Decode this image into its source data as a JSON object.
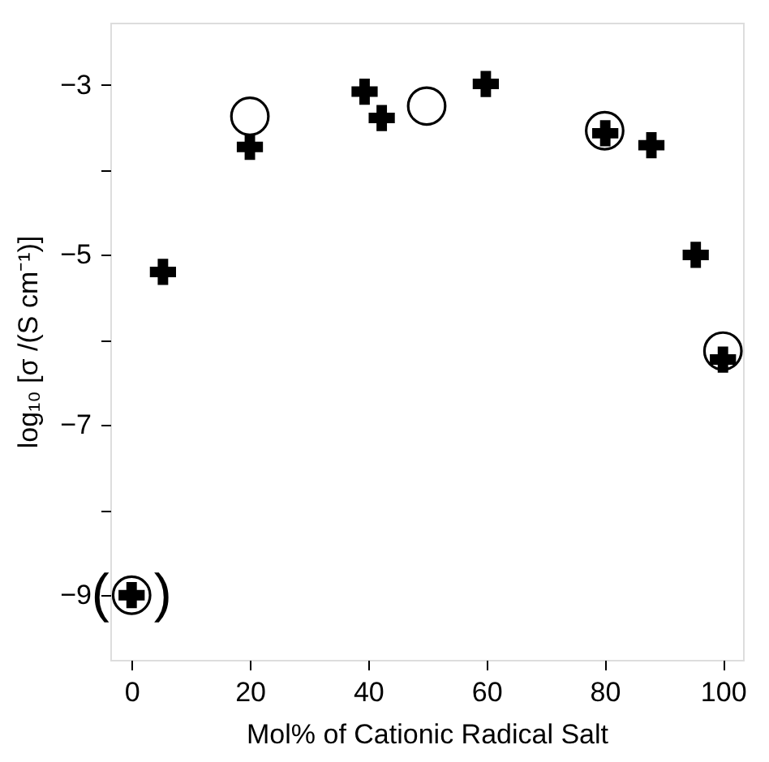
{
  "chart_data": {
    "type": "scatter",
    "xlabel": "Mol% of Cationic Radical Salt",
    "ylabel": "log₁₀ [σ /(S cm⁻¹)]",
    "xlim": [
      -3.6,
      103.4
    ],
    "ylim": [
      -9.76,
      -2.27
    ],
    "xticks": [
      0,
      20,
      40,
      60,
      80,
      100
    ],
    "yticks": [
      -3,
      {
        "value": -4,
        "label": null
      },
      -5,
      {
        "value": -6,
        "label": null
      },
      -7,
      {
        "value": -8,
        "label": null
      },
      -9
    ],
    "grid": false,
    "series": [
      {
        "color": "#000000",
        "marker": "cross",
        "x": [
          0,
          5.3,
          20,
          39.4,
          42.3,
          59.9,
          80.1,
          87.9,
          95.4,
          100
        ],
        "values": [
          -9.0,
          -5.2,
          -3.73,
          -3.08,
          -3.39,
          -2.99,
          -3.57,
          -3.71,
          -5.0,
          -6.23
        ]
      },
      {
        "color": "#000000",
        "marker": "circle",
        "x": [
          0,
          20,
          49.9,
          80,
          100
        ],
        "values": [
          -9.0,
          -3.37,
          -3.25,
          -3.54,
          -6.13
        ]
      }
    ],
    "annotations": [
      {
        "text": "(   )",
        "x": 0,
        "y": -9.0
      }
    ]
  }
}
